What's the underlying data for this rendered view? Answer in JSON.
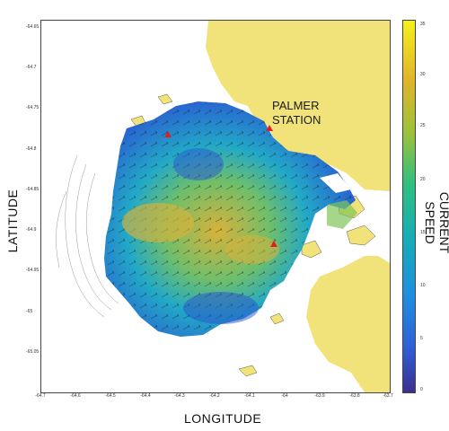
{
  "labels": {
    "latitude_title": "LATITUDE",
    "longitude_title": "LONGITUDE",
    "colorbar_title": "CURRENT SPEED",
    "station_line1": "PALMER",
    "station_line2": "STATION"
  },
  "x_ticks": [
    "-64.7",
    "-64.6",
    "-64.5",
    "-64.4",
    "-64.3",
    "-64.2",
    "-64.1",
    "-64",
    "-63.9",
    "-63.8",
    "-63.7"
  ],
  "y_ticks": [
    "-64.65",
    "-64.7",
    "-64.75",
    "-64.8",
    "-64.85",
    "-64.9",
    "-64.95",
    "-65",
    "-65.05"
  ],
  "colorbar_ticks": [
    "35",
    "30",
    "25",
    "20",
    "15",
    "10",
    "5",
    "0"
  ],
  "colors": {
    "land": "#f1e27a",
    "marker": "#e02020",
    "low": "#2a5bd7",
    "mid": "#1fa7c9",
    "high": "#d9b23a"
  },
  "markers": [
    "red-triangle",
    "red-triangle",
    "red-triangle"
  ]
}
